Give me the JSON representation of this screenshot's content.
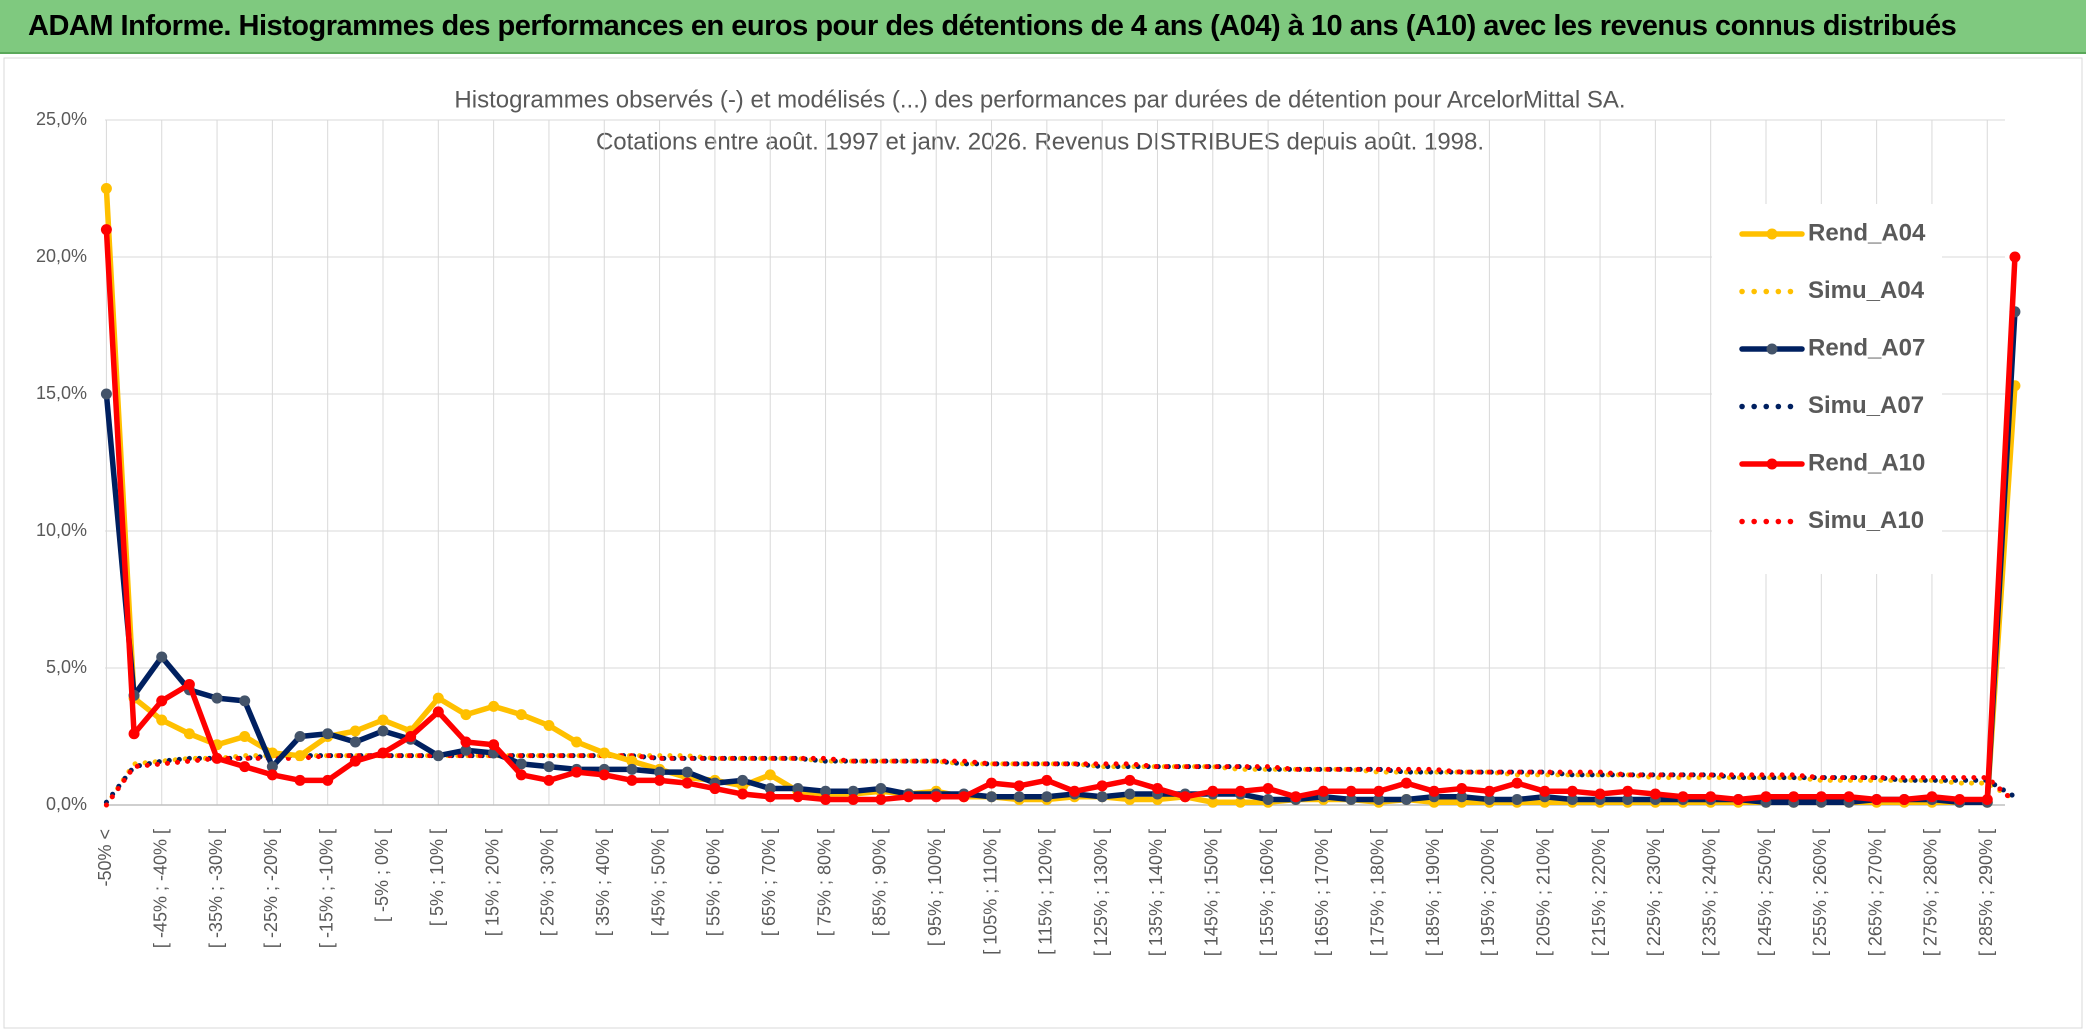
{
  "header": {
    "title": "ADAM Informe. Histogrammes des performances en euros pour des détentions de 4 ans (A04) à 10 ans (A10) avec les revenus connus distribués"
  },
  "chart_data": {
    "type": "line",
    "title": "Histogrammes observés (-) et modélisés (...) des performances par durées de détention pour ArcelorMittal SA.",
    "subtitle": "Cotations entre août. 1997 et janv. 2026. Revenus DISTRIBUES depuis août. 1998.",
    "categories": [
      "-50% <",
      null,
      "[ -45% ; -40% [",
      null,
      "[ -35% ; -30% [",
      null,
      "[ -25% ; -20% [",
      null,
      "[ -15% ; -10% [",
      null,
      "[ -5% ; 0% [",
      null,
      "[ 5% ; 10% [",
      null,
      "[ 15% ; 20% [",
      null,
      "[ 25% ; 30% [",
      null,
      "[ 35% ; 40% [",
      null,
      "[ 45% ; 50% [",
      null,
      "[ 55% ; 60% [",
      null,
      "[ 65% ; 70% [",
      null,
      "[ 75% ; 80% [",
      null,
      "[ 85% ; 90% [",
      null,
      "[ 95% ; 100% [",
      null,
      "[ 105% ; 110% [",
      null,
      "[ 115% ; 120% [",
      null,
      "[ 125% ; 130% [",
      null,
      "[ 135% ; 140% [",
      null,
      "[ 145% ; 150% [",
      null,
      "[ 155% ; 160% [",
      null,
      "[ 165% ; 170% [",
      null,
      "[ 175% ; 180% [",
      null,
      "[ 185% ; 190% [",
      null,
      "[ 195% ; 200% [",
      null,
      "[ 205% ; 210% [",
      null,
      "[ 215% ; 220% [",
      null,
      "[ 225% ; 230% [",
      null,
      "[ 235% ; 240% [",
      null,
      "[ 245% ; 250% [",
      null,
      "[ 255% ; 260% [",
      null,
      "[ 265% ; 270% [",
      null,
      "[ 275% ; 280% [",
      null,
      "[ 285% ; 290% [",
      null
    ],
    "series": [
      {
        "name": "Rend_A04",
        "color": "#ffc000",
        "style": "solid",
        "values": [
          22.5,
          3.9,
          3.1,
          2.6,
          2.2,
          2.5,
          1.9,
          1.8,
          2.5,
          2.7,
          3.1,
          2.7,
          3.9,
          3.3,
          3.6,
          3.3,
          2.9,
          2.3,
          1.9,
          1.6,
          1.3,
          1.0,
          0.9,
          0.7,
          1.1,
          0.5,
          0.4,
          0.4,
          0.5,
          0.4,
          0.5,
          0.3,
          0.3,
          0.2,
          0.2,
          0.3,
          0.3,
          0.2,
          0.2,
          0.3,
          0.1,
          0.1,
          0.1,
          0.2,
          0.2,
          0.2,
          0.1,
          0.2,
          0.1,
          0.1,
          0.1,
          0.1,
          0.1,
          0.1,
          0.1,
          0.1,
          0.1,
          0.1,
          0.1,
          0.1,
          0.1,
          0.1,
          0.1,
          0.1,
          0.1,
          0.1,
          0.1,
          0.1,
          0.1,
          15.3
        ]
      },
      {
        "name": "Simu_A04",
        "color": "#ffc000",
        "style": "dotted",
        "values": [
          0,
          1.5,
          1.6,
          1.7,
          1.7,
          1.8,
          1.8,
          1.8,
          1.8,
          1.8,
          1.8,
          1.8,
          1.8,
          1.8,
          1.8,
          1.8,
          1.8,
          1.8,
          1.8,
          1.8,
          1.8,
          1.8,
          1.7,
          1.7,
          1.7,
          1.7,
          1.6,
          1.6,
          1.6,
          1.6,
          1.6,
          1.5,
          1.5,
          1.5,
          1.5,
          1.5,
          1.4,
          1.4,
          1.4,
          1.4,
          1.4,
          1.3,
          1.3,
          1.3,
          1.3,
          1.3,
          1.2,
          1.2,
          1.2,
          1.2,
          1.2,
          1.1,
          1.1,
          1.1,
          1.1,
          1.1,
          1.0,
          1.0,
          1.0,
          1.0,
          1.0,
          1.0,
          0.9,
          0.9,
          0.9,
          0.9,
          0.9,
          0.8,
          0.8,
          0.2
        ]
      },
      {
        "name": "Rend_A07",
        "color": "#002060",
        "marker": "#44546a",
        "style": "solid",
        "values": [
          15.0,
          4.0,
          5.4,
          4.2,
          3.9,
          3.8,
          1.4,
          2.5,
          2.6,
          2.3,
          2.7,
          2.4,
          1.8,
          2.0,
          1.9,
          1.5,
          1.4,
          1.3,
          1.3,
          1.3,
          1.2,
          1.2,
          0.8,
          0.9,
          0.6,
          0.6,
          0.5,
          0.5,
          0.6,
          0.4,
          0.4,
          0.4,
          0.3,
          0.3,
          0.3,
          0.4,
          0.3,
          0.4,
          0.4,
          0.4,
          0.4,
          0.4,
          0.2,
          0.2,
          0.3,
          0.2,
          0.2,
          0.2,
          0.3,
          0.3,
          0.2,
          0.2,
          0.3,
          0.2,
          0.2,
          0.2,
          0.2,
          0.2,
          0.2,
          0.2,
          0.1,
          0.1,
          0.1,
          0.1,
          0.2,
          0.2,
          0.2,
          0.1,
          0.1,
          18.0
        ]
      },
      {
        "name": "Simu_A07",
        "color": "#002060",
        "style": "dotted",
        "values": [
          0.1,
          1.4,
          1.6,
          1.7,
          1.7,
          1.7,
          1.8,
          1.8,
          1.8,
          1.8,
          1.8,
          1.8,
          1.8,
          1.8,
          1.8,
          1.8,
          1.8,
          1.8,
          1.8,
          1.8,
          1.7,
          1.7,
          1.7,
          1.7,
          1.7,
          1.7,
          1.6,
          1.6,
          1.6,
          1.6,
          1.6,
          1.5,
          1.5,
          1.5,
          1.5,
          1.5,
          1.4,
          1.4,
          1.4,
          1.4,
          1.4,
          1.4,
          1.3,
          1.3,
          1.3,
          1.3,
          1.3,
          1.2,
          1.2,
          1.2,
          1.2,
          1.2,
          1.2,
          1.1,
          1.1,
          1.1,
          1.1,
          1.1,
          1.1,
          1.0,
          1.0,
          1.0,
          1.0,
          1.0,
          1.0,
          0.9,
          0.9,
          0.9,
          0.9,
          0.3
        ]
      },
      {
        "name": "Rend_A10",
        "color": "#ff0000",
        "style": "solid",
        "values": [
          21.0,
          2.6,
          3.8,
          4.4,
          1.7,
          1.4,
          1.1,
          0.9,
          0.9,
          1.6,
          1.9,
          2.5,
          3.4,
          2.3,
          2.2,
          1.1,
          0.9,
          1.2,
          1.1,
          0.9,
          0.9,
          0.8,
          0.6,
          0.4,
          0.3,
          0.3,
          0.2,
          0.2,
          0.2,
          0.3,
          0.3,
          0.3,
          0.8,
          0.7,
          0.9,
          0.5,
          0.7,
          0.9,
          0.6,
          0.3,
          0.5,
          0.5,
          0.6,
          0.3,
          0.5,
          0.5,
          0.5,
          0.8,
          0.5,
          0.6,
          0.5,
          0.8,
          0.5,
          0.5,
          0.4,
          0.5,
          0.4,
          0.3,
          0.3,
          0.2,
          0.3,
          0.3,
          0.3,
          0.3,
          0.2,
          0.2,
          0.3,
          0.2,
          0.2,
          20.0
        ]
      },
      {
        "name": "Simu_A10",
        "color": "#ff0000",
        "style": "dotted",
        "values": [
          0,
          1.4,
          1.5,
          1.6,
          1.7,
          1.7,
          1.7,
          1.7,
          1.8,
          1.8,
          1.8,
          1.8,
          1.8,
          1.8,
          1.8,
          1.8,
          1.8,
          1.8,
          1.8,
          1.8,
          1.7,
          1.7,
          1.7,
          1.7,
          1.7,
          1.7,
          1.7,
          1.6,
          1.6,
          1.6,
          1.6,
          1.6,
          1.5,
          1.5,
          1.5,
          1.5,
          1.5,
          1.5,
          1.4,
          1.4,
          1.4,
          1.4,
          1.4,
          1.3,
          1.3,
          1.3,
          1.3,
          1.3,
          1.3,
          1.2,
          1.2,
          1.2,
          1.2,
          1.2,
          1.2,
          1.1,
          1.1,
          1.1,
          1.1,
          1.1,
          1.1,
          1.1,
          1.0,
          1.0,
          1.0,
          1.0,
          1.0,
          1.0,
          1.0,
          0.1
        ]
      }
    ],
    "ylim": [
      0,
      25
    ],
    "yticks": [
      {
        "value": 0,
        "label": "0,0%"
      },
      {
        "value": 5,
        "label": "5,0%"
      },
      {
        "value": 10,
        "label": "10,0%"
      },
      {
        "value": 15,
        "label": "15,0%"
      },
      {
        "value": 20,
        "label": "20,0%"
      },
      {
        "value": 25,
        "label": "25,0%"
      }
    ],
    "grid": true,
    "legend": "right"
  }
}
